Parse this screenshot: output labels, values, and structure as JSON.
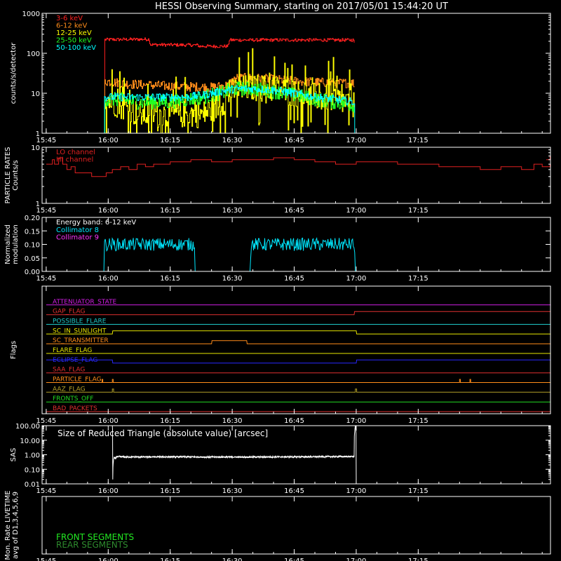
{
  "title": "HESSI Observing Summary, starting on 2017/05/01 15:44:20 UT",
  "time_axis": {
    "range_min": [
      -1,
      122
    ],
    "ticks": [
      {
        "min": 0,
        "label": "15:45"
      },
      {
        "min": 15,
        "label": "16:00"
      },
      {
        "min": 30,
        "label": "16:15"
      },
      {
        "min": 45,
        "label": "16:30"
      },
      {
        "min": 60,
        "label": "16:45"
      },
      {
        "min": 75,
        "label": "17:00"
      },
      {
        "min": 90,
        "label": "17:15"
      }
    ]
  },
  "chart_data": [
    {
      "id": "counts",
      "type": "line",
      "ylabel": "counts/s/detector",
      "yscale": "log",
      "ylim": [
        1,
        1000
      ],
      "yticks": [
        {
          "v": 1,
          "label": "1"
        },
        {
          "v": 10,
          "label": "10"
        },
        {
          "v": 100,
          "label": "100"
        },
        {
          "v": 1000,
          "label": "1000"
        }
      ],
      "legend_placement": "top-left",
      "series": [
        {
          "name": "3-6 keV",
          "color": "#ff2020",
          "noise": 0.04,
          "x": [
            14,
            14.1,
            24.9,
            25.1,
            36.7,
            36.9,
            44,
            44.2,
            74.5,
            74.6
          ],
          "y": [
            1,
            220,
            225,
            165,
            160,
            150,
            150,
            215,
            215,
            1
          ]
        },
        {
          "name": "6-12 keV",
          "color": "#ff8c1a",
          "noise": 0.12,
          "x": [
            14,
            14.1,
            20,
            30,
            40,
            44,
            46,
            50,
            55,
            60,
            65,
            70,
            74.5,
            74.6
          ],
          "y": [
            1,
            20,
            17,
            15,
            14,
            16,
            24,
            24,
            22,
            20,
            19,
            18,
            18,
            1
          ]
        },
        {
          "name": "12-25 keV",
          "color": "#ffff00",
          "noise": 0.35,
          "x": [
            14,
            14.1,
            18,
            22,
            26,
            30,
            34,
            38,
            42,
            46,
            50,
            55,
            60,
            65,
            70,
            74.5,
            74.6
          ],
          "y": [
            1,
            7,
            5,
            3,
            3,
            3,
            3,
            3,
            5,
            12,
            14,
            13,
            10,
            8,
            7,
            5,
            1
          ]
        },
        {
          "name": "25-50 keV",
          "color": "#22ff22",
          "noise": 0.18,
          "x": [
            14,
            14.1,
            18,
            22,
            26,
            30,
            34,
            38,
            42,
            46,
            50,
            55,
            60,
            65,
            70,
            74.5,
            74.6
          ],
          "y": [
            1,
            7,
            7,
            6,
            6,
            6,
            7,
            8,
            10,
            13,
            13,
            11,
            9,
            7,
            6,
            5,
            1
          ]
        },
        {
          "name": "50-100 keV",
          "color": "#00ffff",
          "noise": 0.1,
          "x": [
            0,
            14,
            14.1,
            18,
            22,
            26,
            30,
            34,
            38,
            42,
            46,
            50,
            55,
            60,
            65,
            70,
            74.5,
            74.6,
            122
          ],
          "y": [
            1,
            1,
            8,
            8,
            8,
            8,
            8,
            8,
            9,
            11,
            13,
            13,
            12,
            10,
            8,
            7,
            6,
            1,
            1
          ]
        }
      ]
    },
    {
      "id": "particle",
      "type": "line",
      "ylabel_lines": [
        "PARTICLE RATES",
        "Counts/s"
      ],
      "yscale": "log",
      "ylim": [
        1,
        10
      ],
      "yticks": [
        {
          "v": 1,
          "label": "1"
        },
        {
          "v": 10,
          "label": "10"
        }
      ],
      "legend_placement": "top-left",
      "series": [
        {
          "name": "LO channel",
          "color": "#e02020",
          "x": [
            0,
            1.5,
            2,
            3,
            4,
            5,
            6,
            7,
            9,
            11,
            13,
            14.5,
            16,
            18,
            20,
            22,
            24,
            26,
            30,
            35,
            40,
            45,
            50,
            55,
            60,
            65,
            70,
            75,
            80,
            85,
            90,
            95,
            100,
            105,
            110,
            115,
            118,
            120,
            121.9
          ],
          "y": [
            5,
            6,
            5,
            6.5,
            5,
            4,
            4.5,
            3.5,
            3.5,
            3,
            3,
            3.5,
            4,
            4.5,
            4,
            5,
            4.5,
            5,
            5.5,
            6,
            5.5,
            6,
            6,
            6.5,
            6,
            5.5,
            5,
            5.5,
            5.5,
            5,
            5,
            4.5,
            4.5,
            4,
            4.5,
            4,
            5,
            4.5,
            5
          ]
        },
        {
          "name": "HI channel",
          "color": "#e02020",
          "x": [
            121,
            121.9
          ],
          "y": [
            6,
            7
          ]
        }
      ]
    },
    {
      "id": "modulation",
      "type": "line",
      "ylabel_lines": [
        "Normalized",
        "modulation"
      ],
      "yscale": "linear",
      "ylim": [
        0,
        0.2
      ],
      "yticks": [
        {
          "v": 0,
          "label": "0.00"
        },
        {
          "v": 0.05,
          "label": "0.05"
        },
        {
          "v": 0.1,
          "label": "0.10"
        },
        {
          "v": 0.15,
          "label": "0.15"
        },
        {
          "v": 0.2,
          "label": "0.20"
        }
      ],
      "annotation": "Energy band: 6-12 keV",
      "legend_placement": "top-left",
      "series": [
        {
          "name": "Collimator 8",
          "color": "#00e8ff",
          "noise": 0.012,
          "x": [
            0,
            14,
            14.1,
            35.9,
            36,
            49.4,
            49.5,
            74.6,
            74.7,
            122
          ],
          "y": [
            0,
            0,
            0.1,
            0.1,
            0,
            0,
            0.1,
            0.1,
            0,
            0
          ]
        },
        {
          "name": "Collimator 9",
          "color": "#ff33ff",
          "x": [
            0,
            122
          ],
          "y": [
            0,
            0
          ]
        }
      ]
    },
    {
      "id": "flags",
      "type": "table",
      "ylabel": "Flags",
      "rows": [
        {
          "name": "ATTENUATOR_STATE",
          "color": "#d21ee6",
          "x": [
            0,
            122
          ],
          "y": [
            0,
            0
          ]
        },
        {
          "name": "GAP_FLAG",
          "color": "#e03030",
          "x": [
            0,
            74.5,
            74.6,
            122
          ],
          "y": [
            0,
            0,
            1,
            1
          ]
        },
        {
          "name": "POSSIBLE_FLARE",
          "color": "#1ec8c8",
          "x": [
            0,
            122
          ],
          "y": [
            0,
            0
          ]
        },
        {
          "name": "SC_IN_SUNLIGHT",
          "color": "#e6e600",
          "x": [
            0,
            16,
            16.1,
            75,
            75.1,
            122
          ],
          "y": [
            0,
            0,
            1,
            1,
            0,
            0
          ]
        },
        {
          "name": "SC_TRANSMITTER",
          "color": "#ff8c1a",
          "x": [
            0,
            40,
            40.1,
            48.5,
            48.6,
            122
          ],
          "y": [
            0,
            0,
            1,
            1,
            0,
            0
          ]
        },
        {
          "name": "FLARE_FLAG",
          "color": "#e6e600",
          "x": [
            0,
            122
          ],
          "y": [
            0,
            0
          ]
        },
        {
          "name": "ECLIPSE_FLAG",
          "color": "#2828ff",
          "x": [
            0,
            16,
            16.1,
            75,
            75.1,
            122
          ],
          "y": [
            1,
            1,
            0,
            0,
            1,
            1
          ]
        },
        {
          "name": "SAA_FLAG",
          "color": "#e03030",
          "x": [
            0,
            122
          ],
          "y": [
            0,
            0
          ]
        },
        {
          "name": "PARTICLE_FLAG",
          "color": "#ff8c1a",
          "x": [
            0,
            13.5,
            13.5,
            13.7,
            13.7,
            16,
            16,
            16.2,
            16.2,
            100,
            100,
            100.2,
            100.2,
            102.5,
            102.5,
            102.7,
            102.7,
            122
          ],
          "y": [
            0,
            0,
            1,
            1,
            0,
            0,
            1,
            1,
            0,
            0,
            1,
            1,
            0,
            0,
            1,
            1,
            0,
            0
          ]
        },
        {
          "name": "AAZ_FLAG",
          "color": "#b4a028",
          "x": [
            0,
            16,
            16,
            16.3,
            16.3,
            74.8,
            74.8,
            75.1,
            75.1,
            122
          ],
          "y": [
            0,
            0,
            1,
            1,
            0,
            0,
            1,
            1,
            0,
            0
          ]
        },
        {
          "name": "FRONTS_OFF",
          "color": "#22dc22",
          "x": [
            0,
            122
          ],
          "y": [
            0,
            0
          ]
        },
        {
          "name": "BAD_PACKETS",
          "color": "#e03030",
          "x": [
            0,
            122
          ],
          "y": [
            0,
            0
          ]
        }
      ]
    },
    {
      "id": "sas",
      "type": "line",
      "ylabel": "SAS",
      "yscale": "log",
      "ylim": [
        0.01,
        100
      ],
      "yticks": [
        {
          "v": 0.01,
          "label": "0.01"
        },
        {
          "v": 0.1,
          "label": "0.10"
        },
        {
          "v": 1,
          "label": "1.00"
        },
        {
          "v": 10,
          "label": "10.00"
        },
        {
          "v": 100,
          "label": "100.00"
        }
      ],
      "legend_placement": "top-left",
      "series": [
        {
          "name": "Size of Reduced Triangle (absolute value) [arcsec]",
          "color": "#ffffff",
          "noise": 0.05,
          "x": [
            16,
            16.1,
            16.4,
            16.7,
            17,
            20,
            30,
            40,
            50,
            60,
            70,
            74.5,
            74.8,
            75
          ],
          "y": [
            100,
            0.02,
            0.7,
            0.5,
            0.75,
            0.7,
            0.72,
            0.7,
            0.7,
            0.72,
            0.75,
            0.75,
            100,
            0.02
          ]
        }
      ]
    },
    {
      "id": "livetime",
      "type": "line",
      "ylabel_lines": [
        "Mon. Rate LIVETIME",
        "avg of D1,3,4,5,6,9"
      ],
      "legend_placement": "bottom-left",
      "series": [
        {
          "name": "FRONT SEGMENTS",
          "color": "#22e822"
        },
        {
          "name": "REAR SEGMENTS",
          "color": "#2e8b2e"
        }
      ]
    }
  ]
}
